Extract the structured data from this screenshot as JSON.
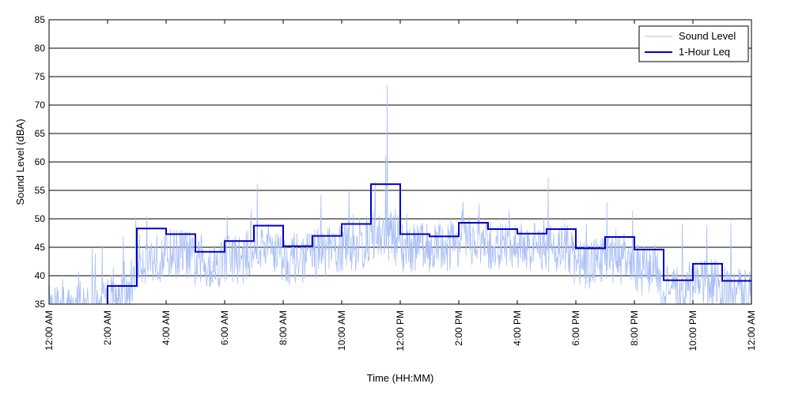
{
  "chart_data": {
    "type": "line",
    "title": "",
    "xlabel": "Time (HH:MM)",
    "ylabel": "Sound Level (dBA)",
    "ylim": [
      35,
      85
    ],
    "yticks": [
      35,
      40,
      45,
      50,
      55,
      60,
      65,
      70,
      75,
      80,
      85
    ],
    "xlim_hours": [
      0,
      24
    ],
    "xticks": [
      {
        "hour": 0,
        "label": "12:00 AM"
      },
      {
        "hour": 2,
        "label": "2:00 AM"
      },
      {
        "hour": 4,
        "label": "4:00 AM"
      },
      {
        "hour": 6,
        "label": "6:00 AM"
      },
      {
        "hour": 8,
        "label": "8:00 AM"
      },
      {
        "hour": 10,
        "label": "10:00 AM"
      },
      {
        "hour": 12,
        "label": "12:00 PM"
      },
      {
        "hour": 14,
        "label": "2:00 PM"
      },
      {
        "hour": 16,
        "label": "4:00 PM"
      },
      {
        "hour": 18,
        "label": "6:00 PM"
      },
      {
        "hour": 20,
        "label": "8:00 PM"
      },
      {
        "hour": 22,
        "label": "10:00 PM"
      },
      {
        "hour": 24,
        "label": "12:00 AM"
      }
    ],
    "grid": "horizontal",
    "legend_position": "top-right",
    "series": [
      {
        "name": "Sound Level",
        "color": "#a9bff5",
        "style": "thin-noisy",
        "hourly_mean": [
          34,
          34,
          36,
          43,
          44,
          42,
          43,
          45,
          43,
          44,
          45,
          47,
          45,
          45,
          46,
          45,
          45,
          45,
          42,
          43,
          41,
          37,
          39,
          37
        ],
        "peaks": [
          {
            "hour": 11.55,
            "value": 73.5
          },
          {
            "hour": 11.5,
            "value": 61
          }
        ]
      },
      {
        "name": "1-Hour Leq",
        "color": "#0000cc",
        "style": "step",
        "x_hours": [
          0,
          1,
          2,
          3,
          4,
          5,
          6,
          7,
          8,
          9,
          10,
          11,
          12,
          13,
          14,
          15,
          16,
          17,
          18,
          19,
          20,
          21,
          22,
          23
        ],
        "values": [
          34,
          34,
          38.2,
          48.3,
          47.3,
          44.2,
          46.1,
          48.8,
          45.2,
          47.0,
          49.1,
          56.1,
          47.3,
          46.9,
          49.3,
          48.2,
          47.4,
          48.2,
          44.8,
          46.8,
          44.6,
          39.2,
          42.1,
          39.1
        ]
      }
    ]
  }
}
